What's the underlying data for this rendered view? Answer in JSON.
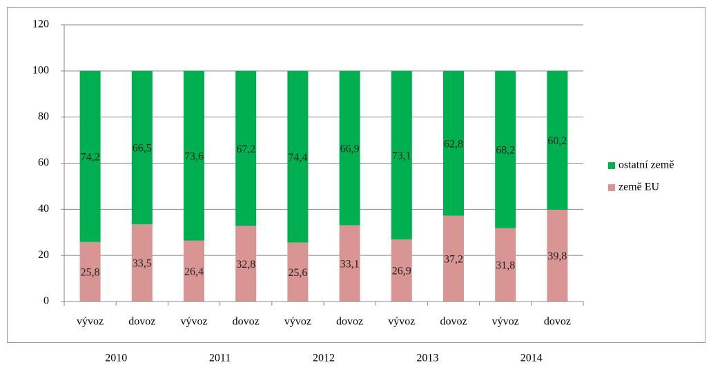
{
  "chart_data": {
    "type": "stacked_bar",
    "categories": [
      "vývoz",
      "dovoz",
      "vývoz",
      "dovoz",
      "vývoz",
      "dovoz",
      "vývoz",
      "dovoz",
      "vývoz",
      "dovoz"
    ],
    "groups": [
      "2010",
      "2011",
      "2012",
      "2013",
      "2014"
    ],
    "series": [
      {
        "name": "země EU",
        "color": "#d99594",
        "values": [
          25.8,
          33.5,
          26.4,
          32.8,
          25.6,
          33.1,
          26.9,
          37.2,
          31.8,
          39.8
        ],
        "value_labels": [
          "25,8",
          "33,5",
          "26,4",
          "32,8",
          "25,6",
          "33,1",
          "26,9",
          "37,2",
          "31,8",
          "39,8"
        ]
      },
      {
        "name": "ostatní země",
        "color": "#00b050",
        "values": [
          74.2,
          66.5,
          73.6,
          67.2,
          74.4,
          66.9,
          73.1,
          62.8,
          68.2,
          60.2
        ],
        "value_labels": [
          "74,2",
          "66,5",
          "73,6",
          "67,2",
          "74,4",
          "66,9",
          "73,1",
          "62,8",
          "68,2",
          "60,2"
        ]
      }
    ],
    "ylim": [
      0,
      120
    ],
    "yticks": [
      0,
      20,
      40,
      60,
      80,
      100,
      120
    ],
    "grid": true,
    "legend": "right"
  }
}
